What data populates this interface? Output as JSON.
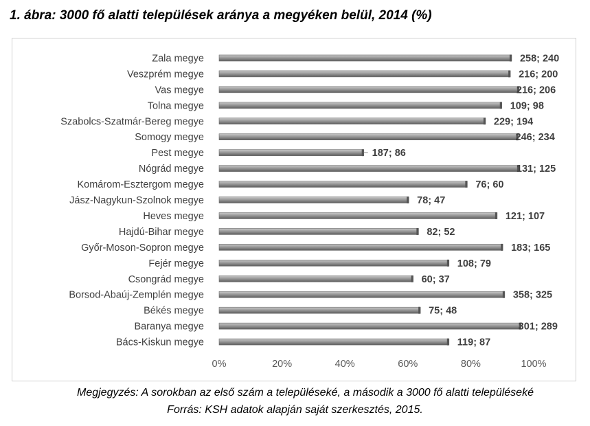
{
  "title": "1. ábra: 3000 fő alatti települések aránya a megyéken belül, 2014 (%)",
  "note": "Megjegyzés: A sorokban az első szám a településeké, a második a 3000 fő alatti településeké",
  "source": "Forrás: KSH adatok alapján saját szerkesztés, 2015.",
  "colors": {
    "bar": "#8c8c8c",
    "bar_light": "#bdbdbd",
    "bar_dark": "#5a5a5a"
  },
  "chart_data": {
    "type": "bar",
    "orientation": "horizontal",
    "title": "1. ábra: 3000 fő alatti települések aránya a megyéken belül, 2014 (%)",
    "xlim": [
      0,
      100
    ],
    "x_ticks": [
      "0%",
      "20%",
      "40%",
      "60%",
      "80%",
      "100%"
    ],
    "grid": false,
    "categories": [
      "Zala megye",
      "Veszprém megye",
      "Vas megye",
      "Tolna megye",
      "Szabolcs-Szatmár-Bereg megye",
      "Somogy megye",
      "Pest megye",
      "Nógrád megye",
      "Komárom-Esztergom megye",
      "Jász-Nagykun-Szolnok megye",
      "Heves megye",
      "Hajdú-Bihar megye",
      "Győr-Moson-Sopron megye",
      "Fejér megye",
      "Csongrád megye",
      "Borsod-Abaúj-Zemplén megye",
      "Békés megye",
      "Baranya megye",
      "Bács-Kiskun megye"
    ],
    "values": [
      93.0,
      92.6,
      95.4,
      89.9,
      84.7,
      95.1,
      46.0,
      95.4,
      78.9,
      60.3,
      88.4,
      63.4,
      90.2,
      73.1,
      61.7,
      90.8,
      64.0,
      96.0,
      73.1
    ],
    "labels": [
      "258; 240",
      "216; 200",
      "216; 206",
      "109; 98",
      "229; 194",
      "246; 234",
      "187; 86",
      "131; 125",
      "76; 60",
      "78; 47",
      "121; 107",
      "82; 52",
      "183; 165",
      "108; 79",
      "60; 37",
      "358; 325",
      "75; 48",
      "301; 289",
      "119; 87"
    ]
  }
}
